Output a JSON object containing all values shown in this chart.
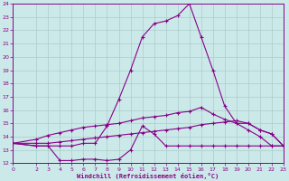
{
  "xlabel": "Windchill (Refroidissement éolien,°C)",
  "xlim": [
    0,
    23
  ],
  "ylim": [
    12,
    24
  ],
  "xticks": [
    0,
    2,
    3,
    4,
    5,
    6,
    7,
    8,
    9,
    10,
    11,
    12,
    13,
    14,
    15,
    16,
    17,
    18,
    19,
    20,
    21,
    22,
    23
  ],
  "yticks": [
    12,
    13,
    14,
    15,
    16,
    17,
    18,
    19,
    20,
    21,
    22,
    23,
    24
  ],
  "background_color": "#cce9e9",
  "grid_color": "#aacccc",
  "line_color": "#880088",
  "lines": [
    {
      "x": [
        0,
        2,
        3,
        4,
        5,
        6,
        7,
        8,
        9,
        10,
        11,
        12,
        13,
        14,
        15,
        16,
        17,
        18,
        19,
        20,
        21,
        22,
        23
      ],
      "y": [
        13.5,
        13.3,
        13.3,
        12.2,
        12.2,
        12.3,
        12.3,
        12.2,
        12.3,
        13.0,
        14.8,
        14.2,
        13.3,
        13.3,
        13.3,
        13.3,
        13.3,
        13.3,
        13.3,
        13.3,
        13.3,
        13.3,
        13.3
      ]
    },
    {
      "x": [
        0,
        2,
        3,
        4,
        5,
        6,
        7,
        8,
        9,
        10,
        11,
        12,
        13,
        14,
        15,
        16,
        17,
        18,
        19,
        20,
        21,
        22,
        23
      ],
      "y": [
        13.5,
        13.3,
        13.3,
        13.3,
        13.3,
        13.5,
        13.5,
        14.8,
        16.8,
        19.0,
        21.5,
        22.5,
        22.7,
        23.1,
        24.0,
        21.5,
        19.0,
        16.3,
        15.0,
        14.5,
        14.0,
        13.3,
        13.3
      ]
    },
    {
      "x": [
        0,
        2,
        3,
        4,
        5,
        6,
        7,
        8,
        9,
        10,
        11,
        12,
        13,
        14,
        15,
        16,
        17,
        18,
        19,
        20,
        21,
        22,
        23
      ],
      "y": [
        13.5,
        13.8,
        14.1,
        14.3,
        14.5,
        14.7,
        14.8,
        14.9,
        15.0,
        15.2,
        15.4,
        15.5,
        15.6,
        15.8,
        15.9,
        16.2,
        15.7,
        15.3,
        15.0,
        15.0,
        14.5,
        14.2,
        13.3
      ]
    },
    {
      "x": [
        0,
        2,
        3,
        4,
        5,
        6,
        7,
        8,
        9,
        10,
        11,
        12,
        13,
        14,
        15,
        16,
        17,
        18,
        19,
        20,
        21,
        22,
        23
      ],
      "y": [
        13.5,
        13.5,
        13.5,
        13.6,
        13.7,
        13.8,
        13.9,
        14.0,
        14.1,
        14.2,
        14.3,
        14.4,
        14.5,
        14.6,
        14.7,
        14.9,
        15.0,
        15.1,
        15.2,
        15.0,
        14.5,
        14.2,
        13.3
      ]
    }
  ]
}
